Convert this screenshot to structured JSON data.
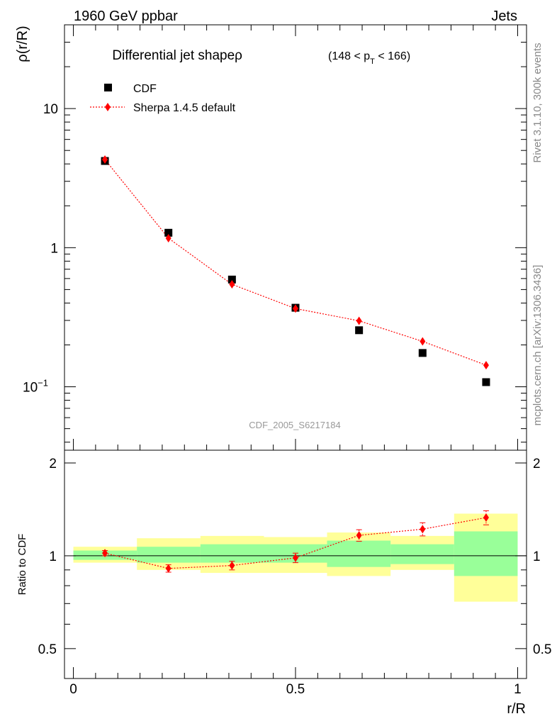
{
  "header": {
    "energy_label": "1960 GeV ppbar",
    "category_label": "Jets"
  },
  "side_text": {
    "rivet": "Rivet 3.1.10,  300k events",
    "source": "mcplots.cern.ch [arXiv:1306.3436]"
  },
  "watermark": "CDF_2005_S6217184",
  "chart_data": [
    {
      "type": "scatter",
      "panel": "main",
      "title": "Differential jet shapeρ",
      "title_range": "(148 < p",
      "title_range_sub": "T",
      "title_range_end": " < 166)",
      "ylabel": "ρ(r/R)",
      "yscale": "log",
      "ylim": [
        0.035,
        40
      ],
      "xlim": [
        -0.02,
        1.02
      ],
      "y_ticks": [
        {
          "value": 10,
          "label": "10"
        },
        {
          "value": 1,
          "label": "1"
        },
        {
          "value": 0.1,
          "label": "10",
          "sup": "−1"
        }
      ],
      "legend": [
        {
          "label": "CDF",
          "marker": "square",
          "color": "#000000"
        },
        {
          "label": "Sherpa 1.4.5 default",
          "marker": "diamond",
          "color": "#ff0000",
          "line": "dotted"
        }
      ],
      "series": [
        {
          "name": "CDF",
          "x": [
            0.071,
            0.214,
            0.357,
            0.5,
            0.643,
            0.786,
            0.929
          ],
          "y": [
            4.2,
            1.28,
            0.59,
            0.37,
            0.255,
            0.175,
            0.108
          ],
          "color": "#000000"
        },
        {
          "name": "Sherpa 1.4.5 default",
          "x": [
            0.071,
            0.214,
            0.357,
            0.5,
            0.643,
            0.786,
            0.929
          ],
          "y": [
            4.3,
            1.17,
            0.545,
            0.365,
            0.298,
            0.212,
            0.143
          ],
          "yerr": [
            0.01,
            0.01,
            0.01,
            0.01,
            0.01,
            0.01,
            0.01
          ],
          "color": "#ff0000"
        }
      ]
    },
    {
      "type": "line",
      "panel": "ratio",
      "ylabel": "Ratio to CDF",
      "xlabel": "r/R",
      "ylim": [
        0.4,
        2.2
      ],
      "xlim": [
        -0.02,
        1.02
      ],
      "y_ticks": [
        {
          "value": 2,
          "label": "2"
        },
        {
          "value": 1,
          "label": "1"
        },
        {
          "value": 0.5,
          "label": "0.5"
        }
      ],
      "x_ticks": [
        {
          "value": 0,
          "label": "0"
        },
        {
          "value": 0.5,
          "label": "0.5"
        },
        {
          "value": 1,
          "label": "1"
        }
      ],
      "bins": [
        0,
        0.143,
        0.286,
        0.429,
        0.571,
        0.714,
        0.857,
        1.0
      ],
      "band_inner": [
        [
          0.97,
          1.04
        ],
        [
          0.95,
          1.07
        ],
        [
          0.95,
          1.09
        ],
        [
          0.95,
          1.09
        ],
        [
          0.92,
          1.12
        ],
        [
          0.94,
          1.09
        ],
        [
          0.86,
          1.2
        ]
      ],
      "band_outer": [
        [
          0.95,
          1.07
        ],
        [
          0.9,
          1.14
        ],
        [
          0.88,
          1.16
        ],
        [
          0.88,
          1.15
        ],
        [
          0.86,
          1.19
        ],
        [
          0.9,
          1.16
        ],
        [
          0.71,
          1.37
        ]
      ],
      "series": [
        {
          "name": "Sherpa 1.4.5 default",
          "x": [
            0.071,
            0.214,
            0.357,
            0.5,
            0.643,
            0.786,
            0.929
          ],
          "y": [
            1.02,
            0.91,
            0.93,
            0.985,
            1.165,
            1.22,
            1.33
          ],
          "yerr": [
            0.02,
            0.025,
            0.03,
            0.035,
            0.05,
            0.06,
            0.07
          ],
          "color": "#ff0000"
        }
      ]
    }
  ]
}
